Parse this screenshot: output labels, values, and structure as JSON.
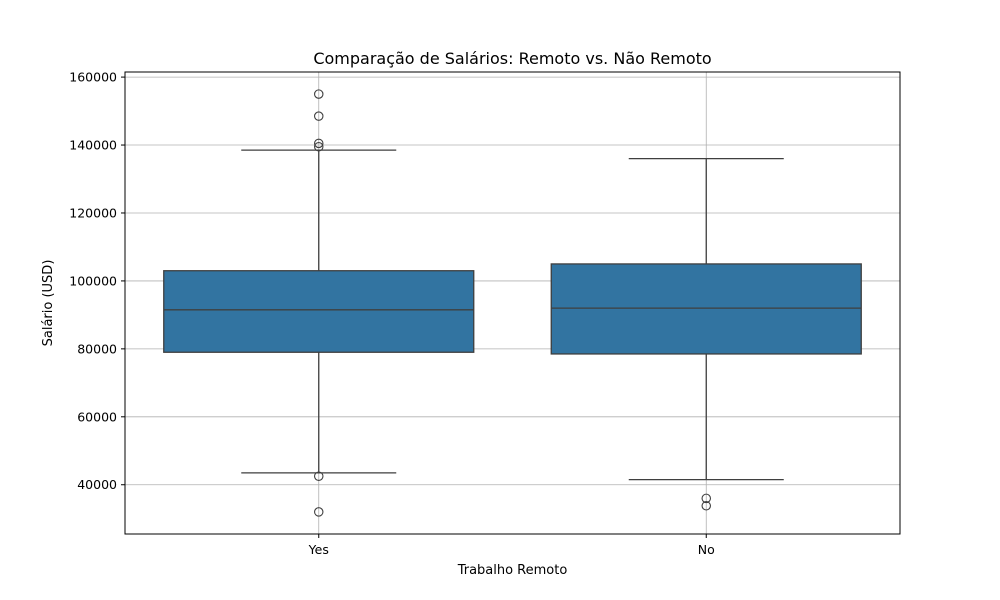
{
  "chart_data": {
    "type": "box",
    "title": "Comparação de Salários: Remoto vs. Não Remoto",
    "xlabel": "Trabalho Remoto",
    "ylabel": "Salário (USD)",
    "categories": [
      "Yes",
      "No"
    ],
    "ylim": [
      25500,
      161500
    ],
    "yticks": [
      40000,
      60000,
      80000,
      100000,
      120000,
      140000,
      160000
    ],
    "grid": true,
    "box_color": "#3274a1",
    "line_color": "#3f3f3f",
    "boxes": [
      {
        "category": "Yes",
        "whisker_low": 43500,
        "q1": 79000,
        "median": 91500,
        "q3": 103000,
        "whisker_high": 138500,
        "outliers": [
          155000,
          148500,
          140500,
          139500,
          42500,
          32000
        ]
      },
      {
        "category": "No",
        "whisker_low": 41500,
        "q1": 78500,
        "median": 92000,
        "q3": 105000,
        "whisker_high": 136000,
        "outliers": [
          36000,
          33800
        ]
      }
    ]
  }
}
